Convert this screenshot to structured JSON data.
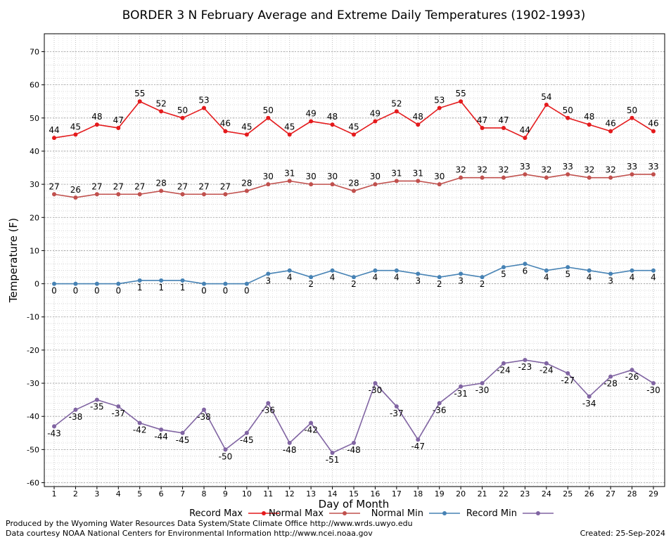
{
  "chart_data": {
    "type": "line",
    "title": "BORDER 3 N February Average and Extreme Daily Temperatures (1902-1993)",
    "xlabel": "Day of Month",
    "ylabel": "Temperature (F)",
    "x": [
      1,
      2,
      3,
      4,
      5,
      6,
      7,
      8,
      9,
      10,
      11,
      12,
      13,
      14,
      15,
      16,
      17,
      18,
      19,
      20,
      21,
      22,
      23,
      24,
      25,
      26,
      27,
      28,
      29
    ],
    "xlim": [
      1,
      29
    ],
    "ylim": [
      -60,
      70
    ],
    "yticks": [
      70,
      60,
      50,
      40,
      30,
      20,
      10,
      0,
      -10,
      -20,
      -30,
      -40,
      -50,
      -60
    ],
    "grid": true,
    "legend_position": "bottom",
    "series": [
      {
        "name": "Record Max",
        "color": "#e41a1c",
        "values": [
          44,
          45,
          48,
          47,
          55,
          52,
          50,
          53,
          46,
          45,
          50,
          45,
          49,
          48,
          45,
          49,
          52,
          48,
          53,
          55,
          47,
          47,
          44,
          54,
          50,
          48,
          46,
          50,
          46
        ]
      },
      {
        "name": "Normal Max",
        "color": "#c0504d",
        "values": [
          27,
          26,
          27,
          27,
          27,
          28,
          27,
          27,
          27,
          28,
          30,
          31,
          30,
          30,
          28,
          30,
          31,
          31,
          30,
          32,
          32,
          32,
          33,
          32,
          33,
          32,
          32,
          33,
          33
        ]
      },
      {
        "name": "Normal Min",
        "color": "#4682b4",
        "values": [
          0,
          0,
          0,
          0,
          1,
          1,
          1,
          0,
          0,
          0,
          3,
          4,
          2,
          4,
          2,
          4,
          4,
          3,
          2,
          3,
          2,
          5,
          6,
          4,
          5,
          4,
          3,
          4,
          4
        ]
      },
      {
        "name": "Record Min",
        "color": "#8064a2",
        "values": [
          -43,
          -38,
          -35,
          -37,
          -42,
          -44,
          -45,
          -38,
          -50,
          -45,
          -36,
          -48,
          -42,
          -51,
          -48,
          -30,
          -37,
          -47,
          -36,
          -31,
          -30,
          -24,
          -23,
          -24,
          -27,
          -34,
          -28,
          -26,
          -30
        ]
      }
    ]
  },
  "footer": {
    "line1": "Produced by the Wyoming Water Resources Data System/State Climate Office http://www.wrds.uwyo.edu",
    "line2": "Data courtesy NOAA National Centers for Environmental Information http://www.ncei.noaa.gov",
    "created": "Created: 25-Sep-2024"
  }
}
